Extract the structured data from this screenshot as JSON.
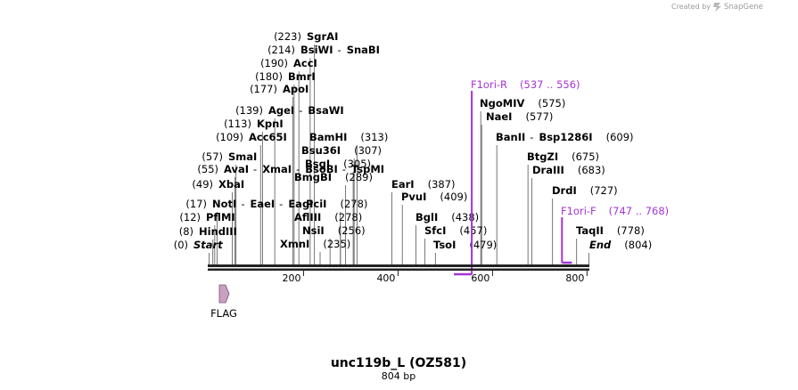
{
  "credit": {
    "prefix": "Created by",
    "brand": "SnapGene"
  },
  "title": "unc119b_L (OZ581)",
  "subtitle": "804 bp",
  "length_bp": 804,
  "ticks": [
    "200",
    "400",
    "600",
    "800"
  ],
  "colors": {
    "primer": "#a335d6",
    "feature": "#c9a0bf",
    "line": "#222222"
  },
  "sites": [
    {
      "pos": 0,
      "name": "Start",
      "italic": true
    },
    {
      "pos": 8,
      "name": "HindIII"
    },
    {
      "pos": 12,
      "name": "PflMI"
    },
    {
      "pos": 17,
      "name": "NotI - EaeI - EagI"
    },
    {
      "pos": 49,
      "name": "XbaI"
    },
    {
      "pos": 55,
      "name": "AvaI - XmaI - BsoBI - TspMI"
    },
    {
      "pos": 57,
      "name": "SmaI"
    },
    {
      "pos": 109,
      "name": "Acc65I"
    },
    {
      "pos": 113,
      "name": "KpnI"
    },
    {
      "pos": 139,
      "name": "AgeI - BsaWI"
    },
    {
      "pos": 177,
      "name": "ApoI"
    },
    {
      "pos": 180,
      "name": "BmrI"
    },
    {
      "pos": 190,
      "name": "AccI"
    },
    {
      "pos": 214,
      "name": "BsiWI - SnaBI"
    },
    {
      "pos": 223,
      "name": "SgrAI"
    },
    {
      "pos": 235,
      "name": "XmnI"
    },
    {
      "pos": 256,
      "name": "NsiI"
    },
    {
      "pos": 278,
      "name": "PciI"
    },
    {
      "pos": 278,
      "name": "AflIII"
    },
    {
      "pos": 289,
      "name": "BmgBI"
    },
    {
      "pos": 305,
      "name": "BsgI"
    },
    {
      "pos": 307,
      "name": "Bsu36I"
    },
    {
      "pos": 313,
      "name": "BamHI"
    },
    {
      "pos": 387,
      "name": "EarI"
    },
    {
      "pos": 409,
      "name": "PvuI"
    },
    {
      "pos": 438,
      "name": "BglI"
    },
    {
      "pos": 457,
      "name": "SfcI"
    },
    {
      "pos": 479,
      "name": "TsoI"
    },
    {
      "pos": 575,
      "name": "NgoMIV"
    },
    {
      "pos": 577,
      "name": "NaeI"
    },
    {
      "pos": 609,
      "name": "BanII - Bsp1286I"
    },
    {
      "pos": 675,
      "name": "BtgZI"
    },
    {
      "pos": 683,
      "name": "DraIII"
    },
    {
      "pos": 727,
      "name": "DrdI"
    },
    {
      "pos": 778,
      "name": "TaqII"
    },
    {
      "pos": 804,
      "name": "End",
      "italic": true
    }
  ],
  "primers": [
    {
      "name": "F1ori-R",
      "range": "(537 .. 556)",
      "start": 537,
      "end": 556,
      "direction": "reverse"
    },
    {
      "name": "F1ori-F",
      "range": "(747 .. 768)",
      "start": 747,
      "end": 768,
      "direction": "forward"
    }
  ],
  "features": [
    {
      "name": "FLAG",
      "start": 12,
      "end": 35,
      "direction": "forward"
    }
  ]
}
